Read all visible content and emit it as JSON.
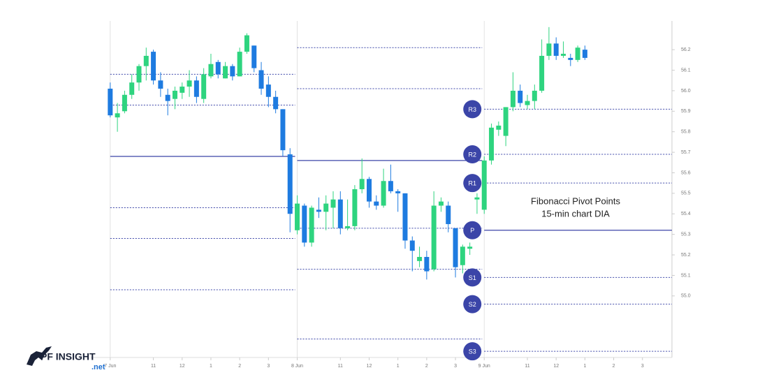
{
  "chart_data": {
    "type": "candlestick",
    "annotation": [
      "Fibonacci Pivot Points",
      "15-min chart DIA"
    ],
    "logo": {
      "name": "PF INSIGHT",
      "suffix": ".net"
    },
    "up_color": "#2ed47f",
    "down_color": "#1e7be0",
    "pivot_color": "#3b45a8",
    "x": [
      0,
      1,
      2,
      3,
      4,
      5,
      6,
      7,
      8,
      9,
      10,
      11,
      12,
      13,
      14,
      15,
      16,
      17,
      18,
      19,
      20,
      21,
      22,
      23,
      24,
      25,
      26,
      27,
      28,
      29,
      30,
      31,
      32,
      33,
      34,
      35,
      36,
      37,
      38,
      39,
      40,
      41,
      42,
      43,
      44,
      45,
      46,
      47,
      48,
      49,
      50,
      51,
      52,
      53,
      54,
      55,
      56,
      57,
      58,
      59,
      60,
      61,
      62,
      63,
      64,
      65,
      66
    ],
    "open": [
      56.01,
      55.87,
      55.9,
      55.98,
      56.04,
      56.12,
      56.19,
      56.05,
      55.98,
      55.96,
      55.99,
      56.02,
      56.05,
      55.96,
      56.07,
      56.14,
      56.06,
      56.12,
      56.07,
      56.19,
      56.22,
      56.1,
      56.03,
      55.97,
      55.91,
      55.69,
      55.32,
      55.44,
      55.26,
      55.42,
      55.41,
      55.43,
      55.47,
      55.33,
      55.34,
      55.52,
      55.57,
      55.46,
      55.44,
      55.56,
      55.51,
      55.5,
      55.27,
      55.17,
      55.19,
      55.13,
      55.44,
      55.44,
      55.33,
      55.15,
      55.23,
      55.47,
      55.42,
      55.66,
      55.81,
      55.78,
      55.92,
      56.0,
      55.93,
      55.95,
      56.0,
      56.17,
      56.23,
      56.17,
      56.16,
      56.15,
      56.2
    ],
    "high": [
      56.04,
      55.94,
      56.0,
      56.08,
      56.13,
      56.21,
      56.2,
      56.09,
      56.01,
      56.02,
      56.04,
      56.1,
      56.07,
      56.11,
      56.18,
      56.15,
      56.14,
      56.13,
      56.21,
      56.28,
      56.22,
      56.14,
      56.07,
      56.0,
      55.91,
      55.72,
      55.49,
      55.45,
      55.44,
      55.48,
      55.49,
      55.51,
      55.51,
      55.47,
      55.54,
      55.67,
      55.58,
      55.49,
      55.62,
      55.64,
      55.52,
      55.5,
      55.29,
      55.24,
      55.22,
      55.51,
      55.48,
      55.46,
      55.33,
      55.25,
      55.26,
      55.5,
      55.68,
      55.84,
      55.85,
      55.92,
      56.09,
      56.03,
      55.98,
      56.03,
      56.25,
      56.31,
      56.26,
      56.24,
      56.18,
      56.22,
      56.22
    ],
    "low": [
      55.87,
      55.8,
      55.89,
      55.96,
      56.0,
      56.05,
      56.03,
      55.97,
      55.88,
      55.91,
      55.96,
      55.97,
      55.94,
      55.94,
      56.06,
      56.06,
      56.06,
      56.05,
      56.07,
      56.18,
      56.09,
      55.98,
      55.92,
      55.89,
      55.68,
      55.31,
      55.3,
      55.24,
      55.24,
      55.38,
      55.32,
      55.33,
      55.3,
      55.32,
      55.32,
      55.5,
      55.43,
      55.42,
      55.43,
      55.5,
      55.41,
      55.23,
      55.12,
      55.14,
      55.08,
      55.12,
      55.41,
      55.31,
      55.09,
      55.11,
      55.2,
      55.4,
      55.4,
      55.64,
      55.78,
      55.73,
      55.9,
      55.92,
      55.91,
      55.91,
      55.99,
      56.15,
      56.15,
      56.16,
      56.12,
      56.14,
      56.15
    ],
    "close": [
      55.88,
      55.89,
      55.98,
      56.04,
      56.12,
      56.17,
      56.05,
      56.01,
      55.95,
      56.0,
      56.02,
      56.05,
      55.97,
      56.08,
      56.13,
      56.08,
      56.12,
      56.07,
      56.19,
      56.27,
      56.11,
      56.01,
      55.97,
      55.91,
      55.71,
      55.4,
      55.45,
      55.26,
      55.43,
      55.41,
      55.45,
      55.47,
      55.33,
      55.34,
      55.52,
      55.57,
      55.46,
      55.44,
      55.56,
      55.51,
      55.5,
      55.27,
      55.22,
      55.19,
      55.12,
      55.44,
      55.46,
      55.35,
      55.14,
      55.24,
      55.24,
      55.48,
      55.66,
      55.82,
      55.83,
      55.92,
      56.0,
      55.94,
      55.95,
      56.0,
      56.17,
      56.23,
      56.17,
      56.18,
      56.15,
      56.21,
      56.16
    ],
    "pivot_days": [
      {
        "start": 0,
        "levels": [
          null,
          56.08,
          55.93,
          55.68,
          55.43,
          55.28,
          55.03
        ]
      },
      {
        "start": 26,
        "levels": [
          null,
          56.21,
          56.01,
          55.66,
          55.33,
          55.13,
          54.79
        ]
      },
      {
        "start": 52,
        "labels": [
          "R3",
          "R2",
          "R1",
          "P",
          "S1",
          "S2",
          "S3"
        ],
        "levels": [
          55.91,
          55.69,
          55.55,
          55.32,
          55.09,
          54.96,
          54.73
        ]
      }
    ],
    "xlim": [
      -2.7,
      78.1
    ],
    "xticks": [
      {
        "value": 0,
        "label": "7 Jun"
      },
      {
        "value": 6,
        "label": "11"
      },
      {
        "value": 10,
        "label": "12"
      },
      {
        "value": 14,
        "label": "1"
      },
      {
        "value": 18,
        "label": "2"
      },
      {
        "value": 22,
        "label": "3"
      },
      {
        "value": 26,
        "label": "8 Jun"
      },
      {
        "value": 32,
        "label": "11"
      },
      {
        "value": 36,
        "label": "12"
      },
      {
        "value": 40,
        "label": "1"
      },
      {
        "value": 44,
        "label": "2"
      },
      {
        "value": 48,
        "label": "3"
      },
      {
        "value": 52,
        "label": "9 Jun"
      },
      {
        "value": 58,
        "label": "11"
      },
      {
        "value": 62,
        "label": "12"
      },
      {
        "value": 66,
        "label": "1"
      },
      {
        "value": 70,
        "label": "2"
      },
      {
        "value": 74,
        "label": "3"
      }
    ],
    "ylim": [
      54.7,
      56.34
    ],
    "yticks": [
      {
        "value": 55,
        "label": "55.0"
      },
      55.1,
      55.2,
      55.3,
      55.4,
      55.5,
      55.6,
      55.7,
      55.8,
      55.9,
      {
        "value": 56,
        "label": "56.0"
      },
      56.1,
      56.2
    ]
  }
}
